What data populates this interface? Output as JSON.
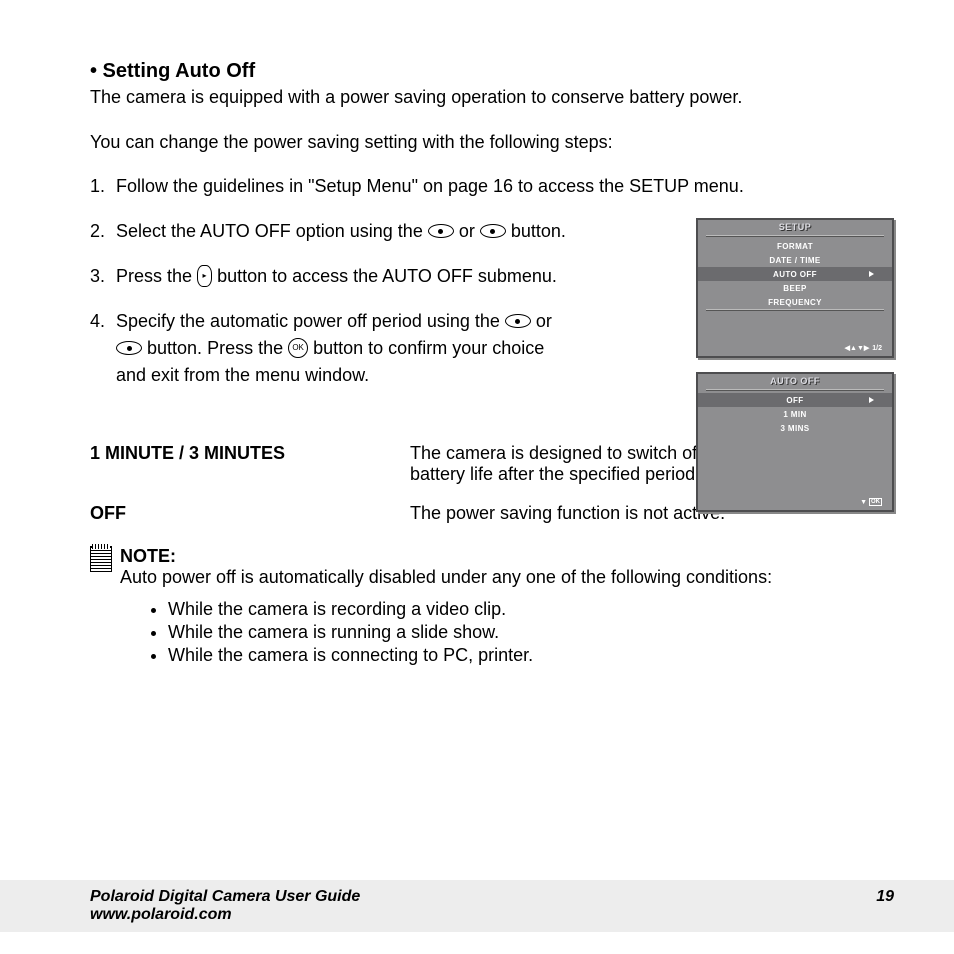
{
  "heading": "• Setting Auto Off",
  "intro": "The camera is equipped with a power saving operation to conserve battery power.",
  "intro2": "You can change the power saving setting with the following steps:",
  "steps": {
    "s1": "Follow the guidelines in \"Setup Menu\" on page 16 to access the SETUP menu.",
    "s2a": "Select the AUTO OFF option using the ",
    "s2b": " or ",
    "s2c": " button.",
    "s3a": "Press the ",
    "s3b": " button to access the AUTO OFF submenu.",
    "s4a": "Specify the automatic power off period using the ",
    "s4b": " or ",
    "s4c": " button. Press the ",
    "s4d": " button to confirm your choice and exit from the menu window."
  },
  "screen1": {
    "title": "SETUP",
    "items": [
      "FORMAT",
      "DATE / TIME",
      "AUTO OFF",
      "BEEP",
      "FREQUENCY"
    ],
    "selectedIndex": 2,
    "footer_arrows": "◀▲▼▶",
    "footer_page": "1/2"
  },
  "screen2": {
    "title": "AUTO OFF",
    "items": [
      "OFF",
      "1 MIN",
      "3 MINS"
    ],
    "selectedIndex": 0,
    "footer_arrow": "▼",
    "footer_ok": "OK"
  },
  "definitions": [
    {
      "term": "1 MINUTE / 3 MINUTES",
      "desc": "The camera is designed to switch off automatically to save battery life after the specified period of inactivity."
    },
    {
      "term": "OFF",
      "desc": "The power saving function is not active."
    }
  ],
  "note": {
    "label": "NOTE:",
    "text": "Auto power off is automatically disabled under any one of the following conditions:",
    "bullets": [
      "While the camera is recording a video clip.",
      "While the camera is running a slide show.",
      "While the camera is connecting to PC, printer."
    ]
  },
  "footer": {
    "line1": "Polaroid Digital Camera User Guide",
    "line2": "www.polaroid.com",
    "page": "19"
  },
  "colors": {
    "screen_bg": "#8e8e90",
    "footer_bg": "#ededed"
  }
}
